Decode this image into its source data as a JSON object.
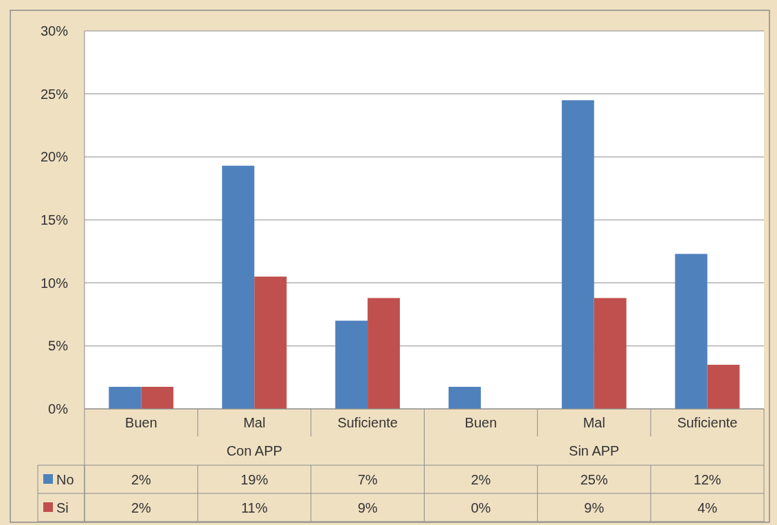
{
  "chart_data": {
    "type": "bar",
    "categories": [
      "Buen",
      "Mal",
      "Suficiente",
      "Buen",
      "Mal",
      "Suficiente"
    ],
    "annotations": [
      "Con APP",
      "Sin APP"
    ],
    "series": [
      {
        "name": "No",
        "color": "#4f81bd",
        "values": [
          1.75,
          19.3,
          7.0,
          1.75,
          24.5,
          12.3
        ],
        "value_labels": [
          "2%",
          "19%",
          "7%",
          "2%",
          "25%",
          "12%"
        ]
      },
      {
        "name": "Si",
        "color": "#c0504d",
        "values": [
          1.75,
          10.5,
          8.8,
          0,
          8.8,
          3.5
        ],
        "value_labels": [
          "2%",
          "11%",
          "9%",
          "0%",
          "9%",
          "4%"
        ]
      }
    ],
    "ylim": [
      0,
      30
    ],
    "yticks": [
      {
        "value": 0,
        "label": "0%"
      },
      {
        "value": 5,
        "label": "5%"
      },
      {
        "value": 10,
        "label": "10%"
      },
      {
        "value": 15,
        "label": "15%"
      },
      {
        "value": 20,
        "label": "20%"
      },
      {
        "value": 25,
        "label": "25%"
      },
      {
        "value": 30,
        "label": "30%"
      }
    ],
    "grid": "y",
    "legend": "bottom"
  }
}
